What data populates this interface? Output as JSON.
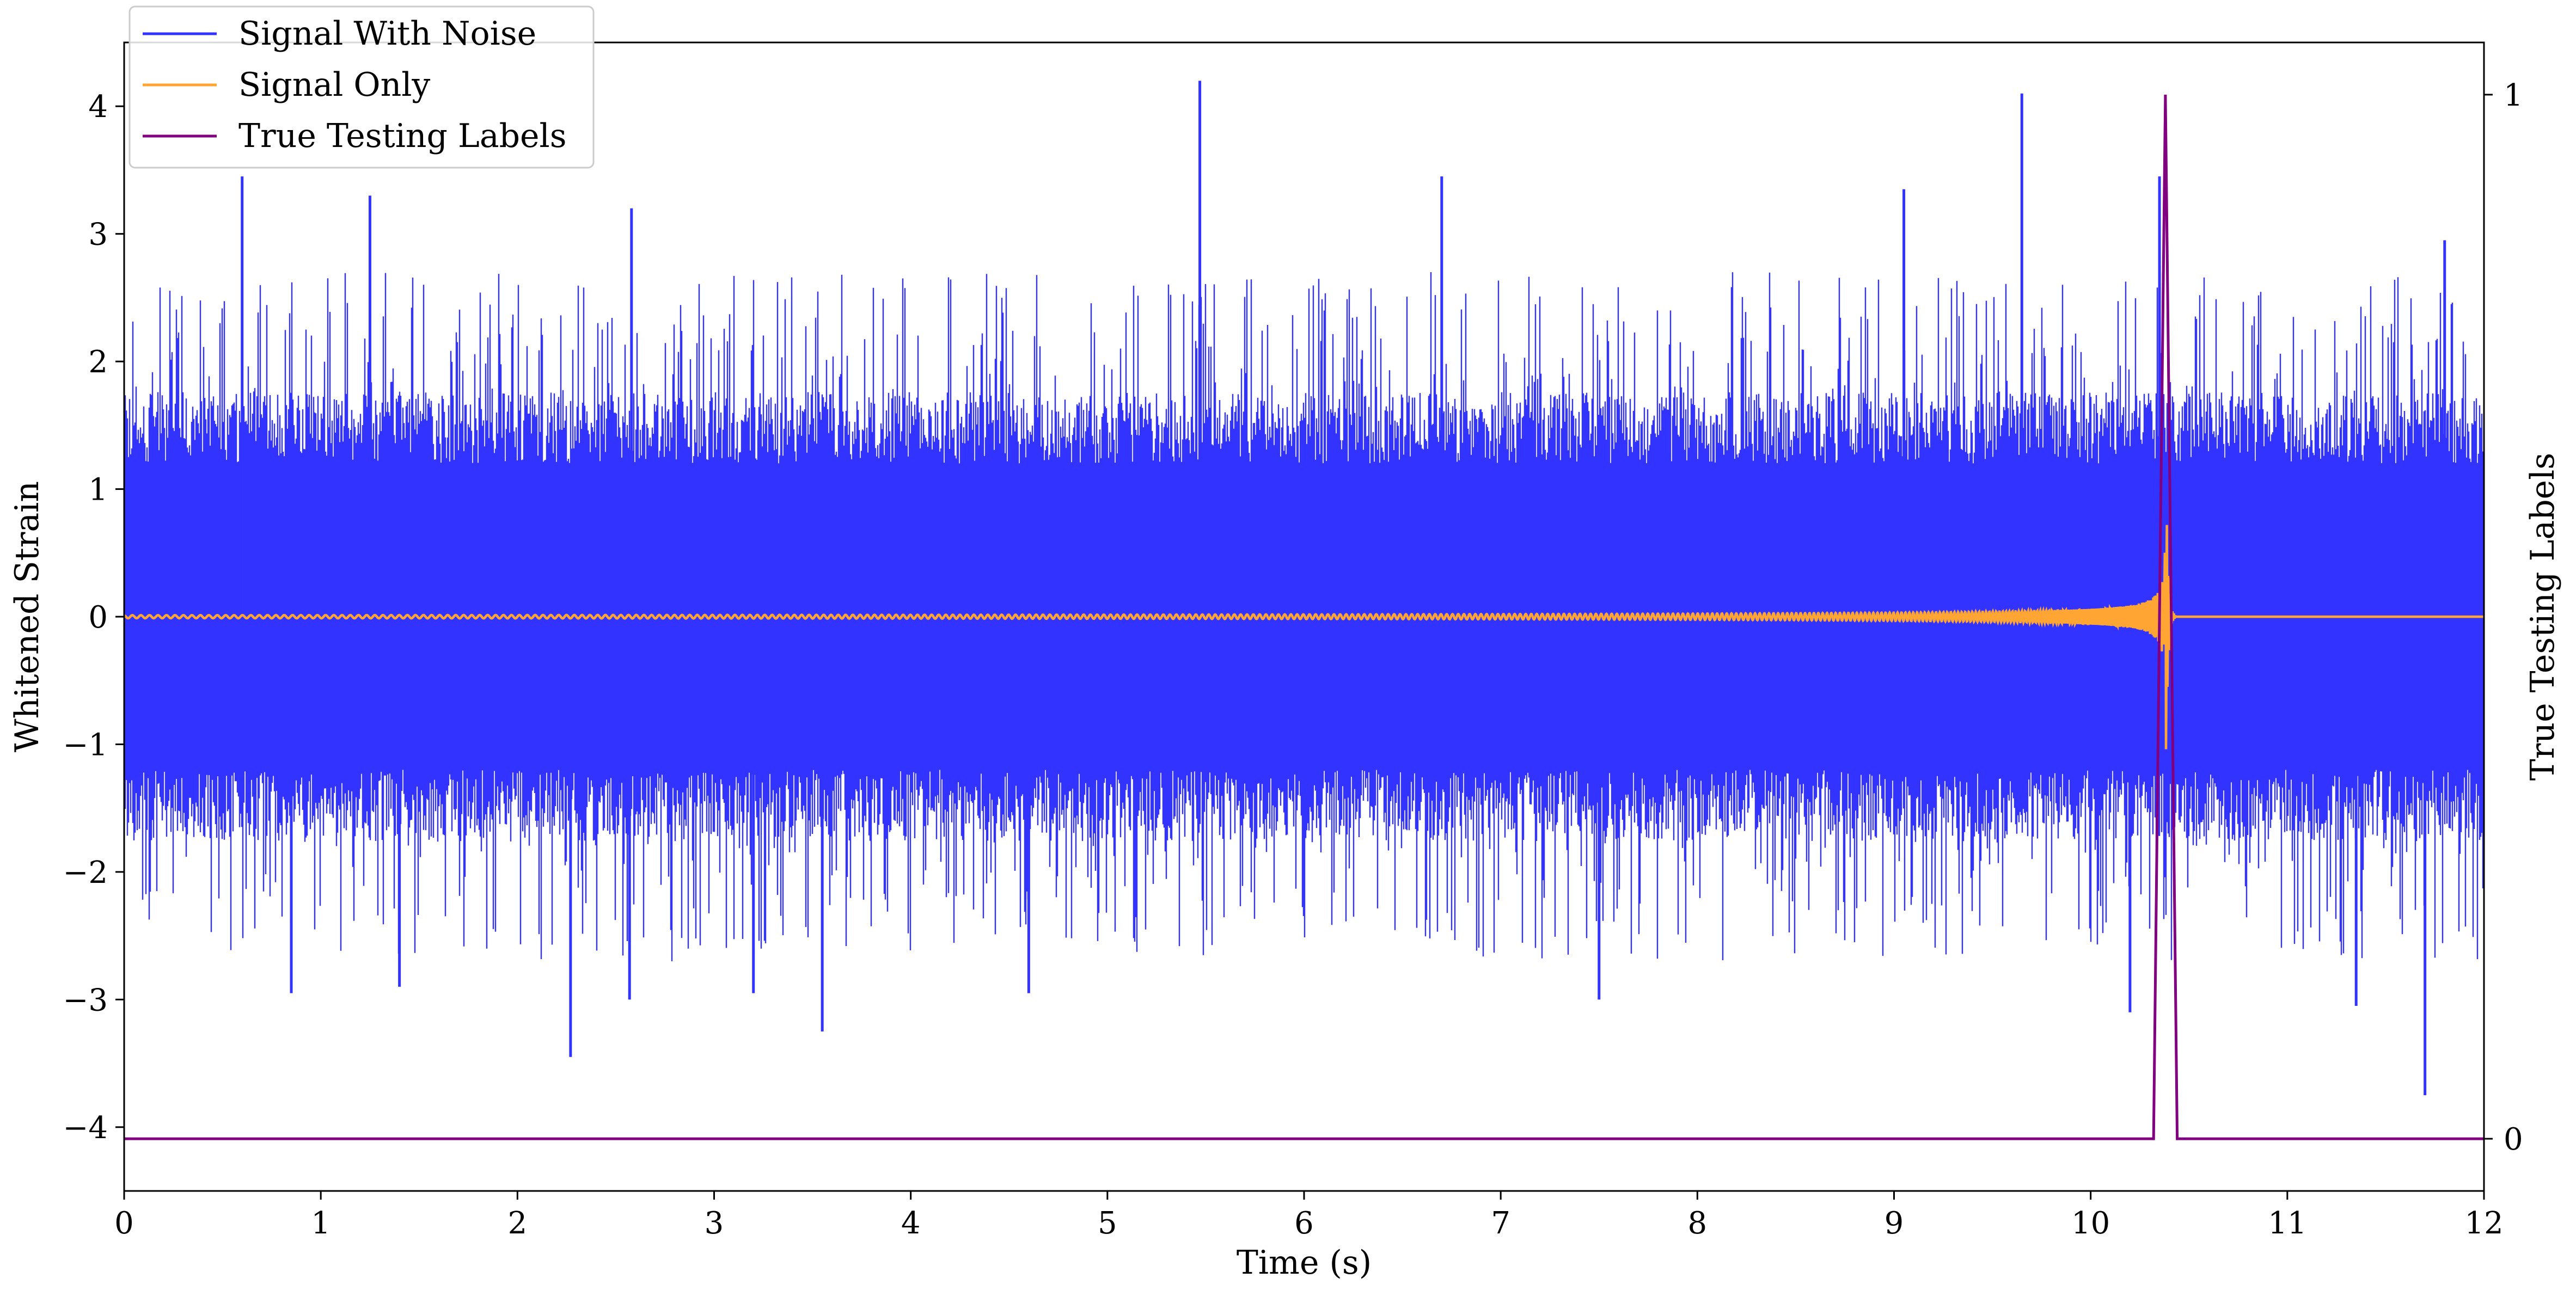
{
  "chart_data": {
    "type": "line",
    "xlabel": "Time (s)",
    "ylabel": "Whitened Strain",
    "y2label": "True Testing Labels",
    "xlim": [
      0,
      12
    ],
    "ylim": [
      -4.5,
      4.5
    ],
    "y2lim": [
      -0.05,
      1.05
    ],
    "xticks": [
      "0",
      "1",
      "2",
      "3",
      "4",
      "5",
      "6",
      "7",
      "8",
      "9",
      "10",
      "11",
      "12"
    ],
    "yticks": [
      "−4",
      "−3",
      "−2",
      "−1",
      "0",
      "1",
      "2",
      "3",
      "4"
    ],
    "y2ticks": [
      "0",
      "1"
    ],
    "legend_position": "top-left",
    "colors": {
      "noise": "#3333ff",
      "signal": "#ffa533",
      "labels": "#800080"
    },
    "series": [
      {
        "name": "Signal With Noise",
        "axis": "left",
        "description_stats": {
          "amplitude_range": [
            -3.8,
            4.2
          ],
          "typical_spread": [
            -1.6,
            1.6
          ]
        },
        "peaks": [
          {
            "x": 0.6,
            "y": 3.45
          },
          {
            "x": 0.85,
            "y": -2.95
          },
          {
            "x": 1.25,
            "y": 3.3
          },
          {
            "x": 1.4,
            "y": -2.9
          },
          {
            "x": 2.27,
            "y": -3.45
          },
          {
            "x": 2.57,
            "y": -3.0
          },
          {
            "x": 2.58,
            "y": 3.2
          },
          {
            "x": 3.2,
            "y": -2.95
          },
          {
            "x": 3.55,
            "y": -3.25
          },
          {
            "x": 4.6,
            "y": -2.95
          },
          {
            "x": 5.47,
            "y": 4.2
          },
          {
            "x": 6.7,
            "y": 3.45
          },
          {
            "x": 7.5,
            "y": -3.0
          },
          {
            "x": 9.05,
            "y": 3.35
          },
          {
            "x": 9.65,
            "y": 4.1
          },
          {
            "x": 10.35,
            "y": 3.45
          },
          {
            "x": 10.2,
            "y": -3.1
          },
          {
            "x": 11.35,
            "y": -3.05
          },
          {
            "x": 11.7,
            "y": -3.75
          },
          {
            "x": 11.8,
            "y": 2.95
          }
        ]
      },
      {
        "name": "Signal Only",
        "axis": "left",
        "description_stats": {
          "chirp_start_x": 0,
          "merger_x": 10.38,
          "peak_amplitude": 1.6,
          "ringdown_end_x": 10.43
        }
      },
      {
        "name": "True Testing Labels",
        "axis": "right",
        "x": [
          0,
          10.32,
          10.38,
          10.44,
          12
        ],
        "values": [
          0,
          0,
          1,
          0,
          0
        ]
      }
    ]
  }
}
